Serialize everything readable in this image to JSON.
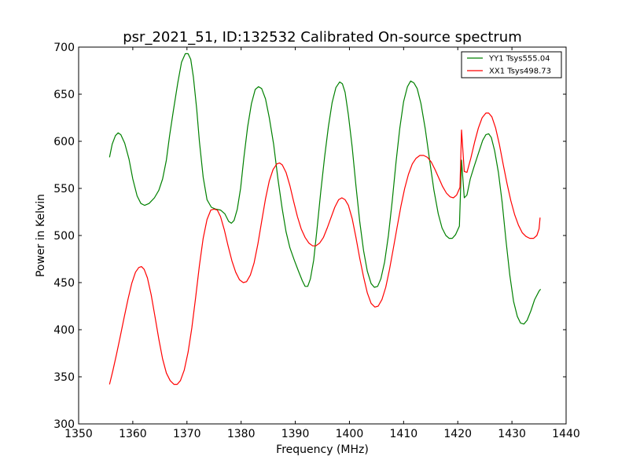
{
  "chart_data": {
    "type": "line",
    "title": "psr_2021_51, ID:132532 Calibrated On-source spectrum",
    "xlabel": "Frequency (MHz)",
    "ylabel": "Power in Kelvin",
    "xlim": [
      1350,
      1440
    ],
    "ylim": [
      300,
      700
    ],
    "xticks": [
      1350,
      1360,
      1370,
      1380,
      1390,
      1400,
      1410,
      1420,
      1430,
      1440
    ],
    "yticks": [
      300,
      350,
      400,
      450,
      500,
      550,
      600,
      650,
      700
    ],
    "grid": false,
    "legend_position": "top-right",
    "series": [
      {
        "name": "YY1 Tsys555.04",
        "color": "#008000",
        "points": [
          [
            1355.7,
            583
          ],
          [
            1356.2,
            597
          ],
          [
            1356.8,
            606
          ],
          [
            1357.3,
            609
          ],
          [
            1357.8,
            607
          ],
          [
            1358.5,
            598
          ],
          [
            1359.3,
            581
          ],
          [
            1360.0,
            560
          ],
          [
            1360.8,
            542
          ],
          [
            1361.5,
            534
          ],
          [
            1362.2,
            532
          ],
          [
            1363.0,
            534
          ],
          [
            1364.0,
            540
          ],
          [
            1364.8,
            548
          ],
          [
            1365.5,
            560
          ],
          [
            1366.2,
            580
          ],
          [
            1366.8,
            606
          ],
          [
            1367.5,
            633
          ],
          [
            1368.3,
            662
          ],
          [
            1369.0,
            684
          ],
          [
            1369.7,
            693
          ],
          [
            1370.2,
            693
          ],
          [
            1370.7,
            687
          ],
          [
            1371.2,
            668
          ],
          [
            1371.8,
            634
          ],
          [
            1372.3,
            600
          ],
          [
            1373.0,
            562
          ],
          [
            1373.7,
            538
          ],
          [
            1374.5,
            530
          ],
          [
            1375.3,
            528
          ],
          [
            1376.2,
            527
          ],
          [
            1377.0,
            523
          ],
          [
            1377.7,
            515
          ],
          [
            1378.2,
            513
          ],
          [
            1378.7,
            516
          ],
          [
            1379.3,
            528
          ],
          [
            1379.9,
            550
          ],
          [
            1380.5,
            582
          ],
          [
            1381.2,
            615
          ],
          [
            1381.9,
            640
          ],
          [
            1382.6,
            655
          ],
          [
            1383.2,
            658
          ],
          [
            1383.8,
            656
          ],
          [
            1384.5,
            645
          ],
          [
            1385.2,
            625
          ],
          [
            1386.0,
            597
          ],
          [
            1386.8,
            560
          ],
          [
            1387.6,
            528
          ],
          [
            1388.3,
            504
          ],
          [
            1389.0,
            487
          ],
          [
            1389.8,
            474
          ],
          [
            1390.6,
            462
          ],
          [
            1391.3,
            452
          ],
          [
            1391.8,
            446
          ],
          [
            1392.3,
            446
          ],
          [
            1392.8,
            454
          ],
          [
            1393.4,
            474
          ],
          [
            1394.0,
            506
          ],
          [
            1394.7,
            546
          ],
          [
            1395.4,
            583
          ],
          [
            1396.1,
            615
          ],
          [
            1396.8,
            641
          ],
          [
            1397.5,
            657
          ],
          [
            1398.2,
            663
          ],
          [
            1398.7,
            661
          ],
          [
            1399.2,
            652
          ],
          [
            1399.8,
            628
          ],
          [
            1400.5,
            594
          ],
          [
            1401.2,
            553
          ],
          [
            1401.9,
            515
          ],
          [
            1402.6,
            484
          ],
          [
            1403.3,
            462
          ],
          [
            1404.0,
            449
          ],
          [
            1404.6,
            445
          ],
          [
            1405.2,
            446
          ],
          [
            1405.8,
            454
          ],
          [
            1406.5,
            472
          ],
          [
            1407.2,
            500
          ],
          [
            1407.9,
            537
          ],
          [
            1408.6,
            578
          ],
          [
            1409.3,
            614
          ],
          [
            1410.0,
            642
          ],
          [
            1410.7,
            658
          ],
          [
            1411.3,
            664
          ],
          [
            1411.9,
            662
          ],
          [
            1412.5,
            656
          ],
          [
            1413.2,
            640
          ],
          [
            1414.0,
            613
          ],
          [
            1414.8,
            580
          ],
          [
            1415.6,
            548
          ],
          [
            1416.4,
            523
          ],
          [
            1417.1,
            508
          ],
          [
            1417.8,
            500
          ],
          [
            1418.4,
            497
          ],
          [
            1419.0,
            497
          ],
          [
            1419.6,
            501
          ],
          [
            1420.3,
            510
          ],
          [
            1420.7,
            580
          ],
          [
            1421.2,
            540
          ],
          [
            1421.7,
            543
          ],
          [
            1422.3,
            560
          ],
          [
            1423.0,
            573
          ],
          [
            1423.8,
            587
          ],
          [
            1424.6,
            601
          ],
          [
            1425.2,
            607
          ],
          [
            1425.7,
            608
          ],
          [
            1426.2,
            604
          ],
          [
            1426.8,
            590
          ],
          [
            1427.5,
            567
          ],
          [
            1428.2,
            535
          ],
          [
            1428.9,
            495
          ],
          [
            1429.6,
            458
          ],
          [
            1430.3,
            430
          ],
          [
            1431.0,
            414
          ],
          [
            1431.6,
            407
          ],
          [
            1432.2,
            406
          ],
          [
            1432.8,
            410
          ],
          [
            1433.5,
            420
          ],
          [
            1434.2,
            432
          ],
          [
            1435.0,
            441
          ],
          [
            1435.3,
            443
          ]
        ]
      },
      {
        "name": "XX1 Tsys498.73",
        "color": "#ff0000",
        "points": [
          [
            1355.7,
            342
          ],
          [
            1356.3,
            356
          ],
          [
            1357.0,
            374
          ],
          [
            1357.7,
            393
          ],
          [
            1358.4,
            413
          ],
          [
            1359.1,
            432
          ],
          [
            1359.8,
            449
          ],
          [
            1360.5,
            461
          ],
          [
            1361.1,
            466
          ],
          [
            1361.6,
            467
          ],
          [
            1362.1,
            464
          ],
          [
            1362.7,
            455
          ],
          [
            1363.4,
            437
          ],
          [
            1364.1,
            414
          ],
          [
            1364.8,
            390
          ],
          [
            1365.5,
            369
          ],
          [
            1366.2,
            354
          ],
          [
            1366.9,
            346
          ],
          [
            1367.6,
            342
          ],
          [
            1368.2,
            342
          ],
          [
            1368.8,
            346
          ],
          [
            1369.5,
            357
          ],
          [
            1370.2,
            376
          ],
          [
            1370.9,
            402
          ],
          [
            1371.6,
            434
          ],
          [
            1372.3,
            468
          ],
          [
            1373.0,
            497
          ],
          [
            1373.7,
            517
          ],
          [
            1374.4,
            527
          ],
          [
            1375.0,
            528
          ],
          [
            1375.6,
            527
          ],
          [
            1376.2,
            520
          ],
          [
            1376.9,
            506
          ],
          [
            1377.6,
            489
          ],
          [
            1378.3,
            473
          ],
          [
            1379.0,
            461
          ],
          [
            1379.7,
            453
          ],
          [
            1380.4,
            450
          ],
          [
            1381.0,
            451
          ],
          [
            1381.7,
            458
          ],
          [
            1382.4,
            471
          ],
          [
            1383.1,
            491
          ],
          [
            1383.8,
            515
          ],
          [
            1384.5,
            539
          ],
          [
            1385.2,
            558
          ],
          [
            1385.9,
            570
          ],
          [
            1386.6,
            576
          ],
          [
            1387.1,
            577
          ],
          [
            1387.6,
            575
          ],
          [
            1388.3,
            567
          ],
          [
            1389.0,
            553
          ],
          [
            1389.7,
            536
          ],
          [
            1390.4,
            520
          ],
          [
            1391.1,
            507
          ],
          [
            1391.8,
            498
          ],
          [
            1392.5,
            492
          ],
          [
            1393.2,
            489
          ],
          [
            1393.8,
            489
          ],
          [
            1394.5,
            492
          ],
          [
            1395.2,
            498
          ],
          [
            1395.9,
            508
          ],
          [
            1396.6,
            519
          ],
          [
            1397.3,
            530
          ],
          [
            1398.0,
            538
          ],
          [
            1398.6,
            540
          ],
          [
            1399.2,
            538
          ],
          [
            1399.8,
            532
          ],
          [
            1400.5,
            518
          ],
          [
            1401.2,
            498
          ],
          [
            1401.9,
            476
          ],
          [
            1402.6,
            456
          ],
          [
            1403.3,
            439
          ],
          [
            1404.0,
            428
          ],
          [
            1404.7,
            424
          ],
          [
            1405.3,
            425
          ],
          [
            1406.0,
            432
          ],
          [
            1406.7,
            445
          ],
          [
            1407.4,
            464
          ],
          [
            1408.1,
            486
          ],
          [
            1408.8,
            509
          ],
          [
            1409.5,
            531
          ],
          [
            1410.2,
            550
          ],
          [
            1410.9,
            565
          ],
          [
            1411.6,
            576
          ],
          [
            1412.3,
            582
          ],
          [
            1413.0,
            585
          ],
          [
            1413.7,
            585
          ],
          [
            1414.4,
            583
          ],
          [
            1415.1,
            578
          ],
          [
            1415.8,
            570
          ],
          [
            1416.5,
            561
          ],
          [
            1417.2,
            552
          ],
          [
            1417.9,
            545
          ],
          [
            1418.6,
            541
          ],
          [
            1419.2,
            540
          ],
          [
            1419.8,
            543
          ],
          [
            1420.4,
            551
          ],
          [
            1420.7,
            612
          ],
          [
            1421.2,
            568
          ],
          [
            1421.7,
            567
          ],
          [
            1422.4,
            582
          ],
          [
            1423.1,
            599
          ],
          [
            1423.8,
            614
          ],
          [
            1424.5,
            625
          ],
          [
            1425.2,
            630
          ],
          [
            1425.7,
            630
          ],
          [
            1426.3,
            626
          ],
          [
            1427.0,
            614
          ],
          [
            1427.7,
            596
          ],
          [
            1428.4,
            575
          ],
          [
            1429.1,
            555
          ],
          [
            1429.8,
            537
          ],
          [
            1430.5,
            522
          ],
          [
            1431.2,
            511
          ],
          [
            1431.9,
            503
          ],
          [
            1432.6,
            499
          ],
          [
            1433.3,
            497
          ],
          [
            1434.0,
            497
          ],
          [
            1434.6,
            500
          ],
          [
            1435.0,
            507
          ],
          [
            1435.2,
            519
          ]
        ]
      }
    ]
  }
}
